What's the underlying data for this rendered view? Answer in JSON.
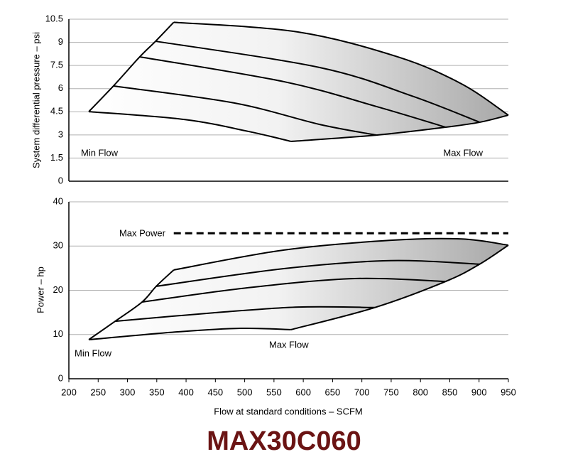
{
  "title": "MAX30C060",
  "chart_data": [
    {
      "type": "line",
      "ylabel": "System differential pressure – psi",
      "annotations": [
        "Min Flow",
        "Max Flow"
      ],
      "xlim": [
        200,
        950
      ],
      "ylim": [
        0,
        10.5
      ],
      "yticks": [
        0,
        1.5,
        3,
        4.5,
        6,
        7.5,
        9,
        10.5
      ],
      "grid": true,
      "fill": true,
      "series": [
        {
          "color": "#000000",
          "x": [
            234,
            276,
            321,
            348,
            379
          ],
          "values": [
            4.51,
            6.17,
            8.06,
            9.07,
            10.3
          ]
        },
        {
          "color": "#000000",
          "x": [
            379,
            591,
            761,
            870,
            950
          ],
          "values": [
            10.3,
            9.67,
            8.06,
            6.31,
            4.28
          ]
        },
        {
          "color": "#000000",
          "x": [
            348,
            628,
            785,
            901
          ],
          "values": [
            9.07,
            7.37,
            5.53,
            3.82
          ]
        },
        {
          "color": "#000000",
          "x": [
            321,
            567,
            725,
            843
          ],
          "values": [
            8.06,
            6.45,
            4.84,
            3.5
          ]
        },
        {
          "color": "#000000",
          "x": [
            276,
            482,
            628,
            725
          ],
          "values": [
            6.17,
            5.07,
            3.68,
            2.99
          ]
        },
        {
          "color": "#000000",
          "x": [
            234,
            397,
            507,
            579
          ],
          "values": [
            4.51,
            4.0,
            3.22,
            2.58
          ]
        },
        {
          "color": "#000000",
          "x": [
            579,
            725,
            843,
            901,
            950
          ],
          "values": [
            2.58,
            2.99,
            3.5,
            3.82,
            4.28
          ]
        }
      ]
    },
    {
      "type": "line",
      "ylabel": "Power – hp",
      "xlabel": "Flow at standard conditions – SCFM",
      "annotations": [
        "Max Power",
        "Min Flow",
        "Max Flow"
      ],
      "xlim": [
        200,
        950
      ],
      "ylim": [
        0,
        40
      ],
      "xticks": [
        200,
        250,
        300,
        350,
        400,
        450,
        500,
        550,
        600,
        650,
        700,
        750,
        800,
        850,
        900,
        950
      ],
      "yticks": [
        0,
        10,
        20,
        30,
        40
      ],
      "grid": true,
      "fill": true,
      "series": [
        {
          "color": "#000000",
          "x": [
            234,
            279,
            325,
            349,
            379
          ],
          "values": [
            8.84,
            13.0,
            17.35,
            20.9,
            24.6
          ]
        },
        {
          "color": "#000000",
          "x": [
            379,
            567,
            749,
            870,
            950
          ],
          "values": [
            24.6,
            29.1,
            31.3,
            31.6,
            30.2
          ]
        },
        {
          "color": "#000000",
          "x": [
            349,
            567,
            749,
            901
          ],
          "values": [
            20.9,
            24.9,
            26.7,
            25.9
          ]
        },
        {
          "color": "#000000",
          "x": [
            325,
            507,
            688,
            843
          ],
          "values": [
            17.35,
            20.6,
            22.65,
            22.0
          ]
        },
        {
          "color": "#000000",
          "x": [
            279,
            446,
            591,
            722
          ],
          "values": [
            13.0,
            14.9,
            16.2,
            16.1
          ]
        },
        {
          "color": "#000000",
          "x": [
            234,
            385,
            494,
            579
          ],
          "values": [
            8.84,
            10.6,
            11.4,
            11.1
          ]
        },
        {
          "color": "#000000",
          "x": [
            579,
            722,
            843,
            901,
            950
          ],
          "values": [
            11.1,
            16.1,
            22.0,
            25.9,
            30.2
          ]
        },
        {
          "color": "#000000",
          "style": "dashed",
          "x": [
            379,
            950
          ],
          "values": [
            32.9,
            32.9
          ]
        }
      ]
    }
  ]
}
